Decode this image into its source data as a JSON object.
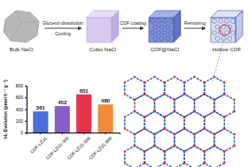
{
  "diagram": {
    "steps": [
      {
        "label": "Bulk NaCl"
      },
      {
        "label": "Cubic NaCl"
      },
      {
        "label": "COF@NaCl"
      },
      {
        "label": "Hollow COF"
      }
    ],
    "arrows": [
      {
        "labels": [
          "Glycerol dissolution",
          "Cooling"
        ]
      },
      {
        "labels": [
          "COF coating"
        ]
      },
      {
        "labels": [
          "Removing"
        ]
      }
    ]
  },
  "chart_data": {
    "type": "bar",
    "y_label": "H₂ Evolution (μmol h⁻¹ g⁻¹)",
    "categories": [
      "COF-LZU1",
      "COF-LZU1-300",
      "COF-LZU1-500",
      "COF-LZU1-800"
    ],
    "values": [
      361,
      452,
      651,
      480
    ],
    "colors": [
      "#4a6fd8",
      "#8a5cc7",
      "#e8334a",
      "#f08a3a"
    ],
    "ylim": [
      0,
      800
    ],
    "yticks": [
      0,
      200,
      400,
      600,
      800
    ],
    "data_labels": true
  }
}
